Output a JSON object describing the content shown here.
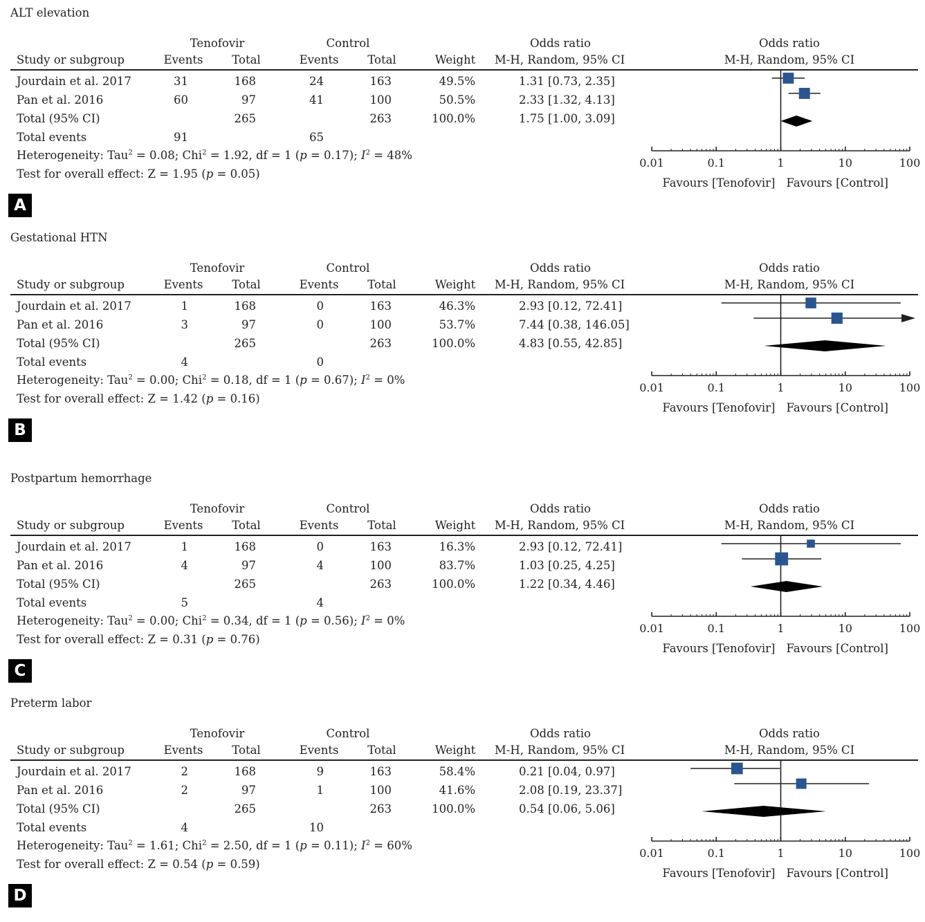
{
  "headers": {
    "study": "Study or subgroup",
    "group1": "Tenofovir",
    "group2": "Control",
    "events": "Events",
    "total": "Total",
    "weight": "Weight",
    "or_title": "Odds ratio",
    "or_method": "M-H, Random, 95% CI"
  },
  "axis": {
    "ticks": [
      "0.01",
      "0.1",
      "1",
      "10",
      "100"
    ],
    "favours_left": "Favours [Tenofovir]",
    "favours_right": "Favours [Control]"
  },
  "colors": {
    "marker": "#2a5590",
    "ink": "#231f20"
  },
  "panels": [
    {
      "letter": "A",
      "title": "ALT elevation",
      "studies": [
        {
          "name": "Jourdain et al. 2017",
          "e1": "31",
          "t1": "168",
          "e2": "24",
          "t2": "163",
          "weight": "49.5%",
          "ci": "1.31 [0.73, 2.35]"
        },
        {
          "name": "Pan et al. 2016",
          "e1": "60",
          "t1": "97",
          "e2": "41",
          "t2": "100",
          "weight": "50.5%",
          "ci": "2.33 [1.32, 4.13]"
        }
      ],
      "total": {
        "label": "Total (95% CI)",
        "t1": "265",
        "t2": "263",
        "weight": "100.0%",
        "ci": "1.75 [1.00, 3.09]"
      },
      "events": {
        "label": "Total events",
        "e1": "91",
        "e2": "65"
      },
      "het": {
        "a": "Heterogeneity: Tau",
        "b": " = 0.08; Chi",
        "c": " = 1.92, df = 1 (",
        "p": "p",
        "d": " = 0.17); ",
        "i": "I",
        "e": " = 48%",
        "sup": "2"
      },
      "overall": {
        "a": "Test for overall effect: Z = 1.95 (",
        "p": "p",
        "b": " = 0.05)"
      }
    },
    {
      "letter": "B",
      "title": "Gestational HTN",
      "studies": [
        {
          "name": "Jourdain et al. 2017",
          "e1": "1",
          "t1": "168",
          "e2": "0",
          "t2": "163",
          "weight": "46.3%",
          "ci": "2.93 [0.12, 72.41]"
        },
        {
          "name": "Pan et al. 2016",
          "e1": "3",
          "t1": "97",
          "e2": "0",
          "t2": "100",
          "weight": "53.7%",
          "ci": "7.44 [0.38, 146.05]"
        }
      ],
      "total": {
        "label": "Total (95% CI)",
        "t1": "265",
        "t2": "263",
        "weight": "100.0%",
        "ci": "4.83 [0.55, 42.85]"
      },
      "events": {
        "label": "Total events",
        "e1": "4",
        "e2": "0"
      },
      "het": {
        "a": "Heterogeneity: Tau",
        "b": " = 0.00; Chi",
        "c": " = 0.18, df = 1 (",
        "p": "p",
        "d": " = 0.67); ",
        "i": "I",
        "e": " = 0%",
        "sup": "2"
      },
      "overall": {
        "a": "Test for overall effect: Z = 1.42 (",
        "p": "p",
        "b": " = 0.16)"
      }
    },
    {
      "letter": "C",
      "title": "Postpartum hemorrhage",
      "studies": [
        {
          "name": "Jourdain et al. 2017",
          "e1": "1",
          "t1": "168",
          "e2": "0",
          "t2": "163",
          "weight": "16.3%",
          "ci": "2.93 [0.12, 72.41]"
        },
        {
          "name": "Pan et al. 2016",
          "e1": "4",
          "t1": "97",
          "e2": "4",
          "t2": "100",
          "weight": "83.7%",
          "ci": "1.03 [0.25, 4.25]"
        }
      ],
      "total": {
        "label": "Total (95% CI)",
        "t1": "265",
        "t2": "263",
        "weight": "100.0%",
        "ci": "1.22 [0.34, 4.46]"
      },
      "events": {
        "label": "Total events",
        "e1": "5",
        "e2": "4"
      },
      "het": {
        "a": "Heterogeneity: Tau",
        "b": " = 0.00; Chi",
        "c": " = 0.34, df = 1 (",
        "p": "p",
        "d": " = 0.56); ",
        "i": "I",
        "e": " = 0%",
        "sup": "2"
      },
      "overall": {
        "a": "Test for overall effect: Z = 0.31 (",
        "p": "p",
        "b": " = 0.76)"
      }
    },
    {
      "letter": "D",
      "title": "Preterm labor",
      "studies": [
        {
          "name": "Jourdain et al. 2017",
          "e1": "2",
          "t1": "168",
          "e2": "9",
          "t2": "163",
          "weight": "58.4%",
          "ci": "0.21 [0.04, 0.97]"
        },
        {
          "name": "Pan et al. 2016",
          "e1": "2",
          "t1": "97",
          "e2": "1",
          "t2": "100",
          "weight": "41.6%",
          "ci": "2.08 [0.19, 23.37]"
        }
      ],
      "total": {
        "label": "Total (95% CI)",
        "t1": "265",
        "t2": "263",
        "weight": "100.0%",
        "ci": "0.54 [0.06, 5.06]"
      },
      "events": {
        "label": "Total events",
        "e1": "4",
        "e2": "10"
      },
      "het": {
        "a": "Heterogeneity: Tau",
        "b": " = 1.61; Chi",
        "c": " = 2.50, df = 1 (",
        "p": "p",
        "d": " = 0.11); ",
        "i": "I",
        "e": " = 60%",
        "sup": "2"
      },
      "overall": {
        "a": "Test for overall effect: Z = 0.54 (",
        "p": "p",
        "b": " = 0.59)"
      }
    }
  ],
  "chart_data": [
    {
      "type": "forest",
      "title": "ALT elevation",
      "scale": "log",
      "xlim": [
        0.01,
        100
      ],
      "xticks": [
        0.01,
        0.1,
        1,
        10,
        100
      ],
      "xlabel_left": "Favours [Tenofovir]",
      "xlabel_right": "Favours [Control]",
      "series": [
        {
          "name": "Jourdain et al. 2017",
          "or": 1.31,
          "lo": 0.73,
          "hi": 2.35,
          "weight": 49.5
        },
        {
          "name": "Pan et al. 2016",
          "or": 2.33,
          "lo": 1.32,
          "hi": 4.13,
          "weight": 50.5
        }
      ],
      "pooled": {
        "or": 1.75,
        "lo": 1.0,
        "hi": 3.09
      }
    },
    {
      "type": "forest",
      "title": "Gestational HTN",
      "scale": "log",
      "xlim": [
        0.01,
        100
      ],
      "xticks": [
        0.01,
        0.1,
        1,
        10,
        100
      ],
      "xlabel_left": "Favours [Tenofovir]",
      "xlabel_right": "Favours [Control]",
      "series": [
        {
          "name": "Jourdain et al. 2017",
          "or": 2.93,
          "lo": 0.12,
          "hi": 72.41,
          "weight": 46.3
        },
        {
          "name": "Pan et al. 2016",
          "or": 7.44,
          "lo": 0.38,
          "hi": 146.05,
          "weight": 53.7
        }
      ],
      "pooled": {
        "or": 4.83,
        "lo": 0.55,
        "hi": 42.85
      }
    },
    {
      "type": "forest",
      "title": "Postpartum hemorrhage",
      "scale": "log",
      "xlim": [
        0.01,
        100
      ],
      "xticks": [
        0.01,
        0.1,
        1,
        10,
        100
      ],
      "xlabel_left": "Favours [Tenofovir]",
      "xlabel_right": "Favours [Control]",
      "series": [
        {
          "name": "Jourdain et al. 2017",
          "or": 2.93,
          "lo": 0.12,
          "hi": 72.41,
          "weight": 16.3
        },
        {
          "name": "Pan et al. 2016",
          "or": 1.03,
          "lo": 0.25,
          "hi": 4.25,
          "weight": 83.7
        }
      ],
      "pooled": {
        "or": 1.22,
        "lo": 0.34,
        "hi": 4.46
      }
    },
    {
      "type": "forest",
      "title": "Preterm labor",
      "scale": "log",
      "xlim": [
        0.01,
        100
      ],
      "xticks": [
        0.01,
        0.1,
        1,
        10,
        100
      ],
      "xlabel_left": "Favours [Tenofovir]",
      "xlabel_right": "Favours [Control]",
      "series": [
        {
          "name": "Jourdain et al. 2017",
          "or": 0.21,
          "lo": 0.04,
          "hi": 0.97,
          "weight": 58.4
        },
        {
          "name": "Pan et al. 2016",
          "or": 2.08,
          "lo": 0.19,
          "hi": 23.37,
          "weight": 41.6
        }
      ],
      "pooled": {
        "or": 0.54,
        "lo": 0.06,
        "hi": 5.06
      }
    }
  ]
}
